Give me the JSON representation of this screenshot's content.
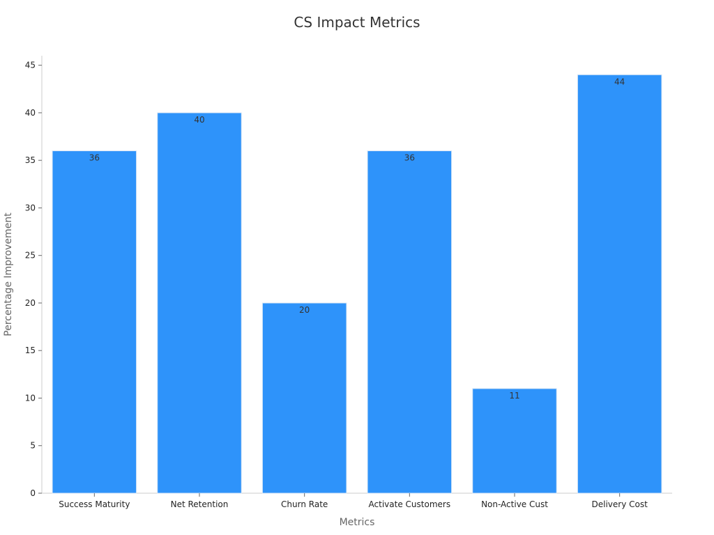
{
  "chart_data": {
    "type": "bar",
    "title": "CS Impact Metrics",
    "xlabel": "Metrics",
    "ylabel": "Percentage Improvement",
    "categories": [
      "Success Maturity",
      "Net Retention",
      "Churn Rate",
      "Activate Customers",
      "Non-Active Cust",
      "Delivery Cost"
    ],
    "values": [
      36,
      40,
      20,
      36,
      11,
      44
    ],
    "ylim": [
      0,
      46
    ],
    "yticks": [
      0,
      5,
      10,
      15,
      20,
      25,
      30,
      35,
      40,
      45
    ],
    "grid": false,
    "legend": "none",
    "bar_color": "#2e93fa",
    "bar_edge_color": "#d8e6f5",
    "axis_color": "#cccccc",
    "tick_label_color": "#222222",
    "data_label_color": "#333333"
  }
}
